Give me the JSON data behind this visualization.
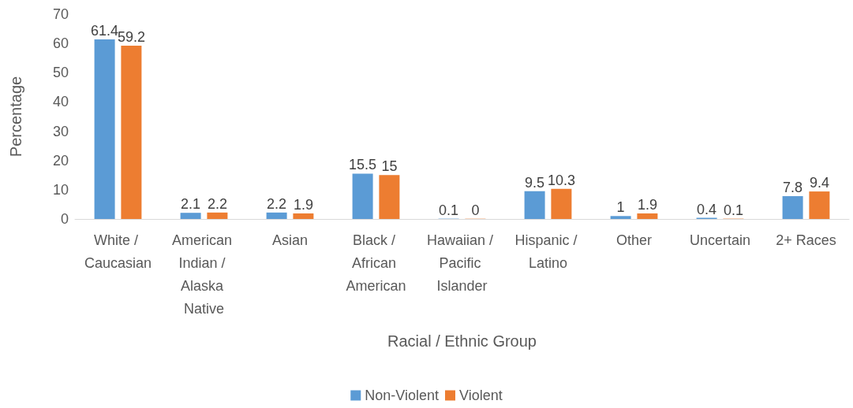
{
  "chart_data": {
    "type": "bar",
    "xlabel": "Racial / Ethnic Group",
    "ylabel": "Percentage",
    "categories": [
      "White / Caucasian",
      "American Indian / Alaska Native",
      "Asian",
      "Black / African American",
      "Hawaiian / Pacific Islander",
      "Hispanic / Latino",
      "Other",
      "Uncertain",
      "2+ Races"
    ],
    "series": [
      {
        "name": "Non-Violent",
        "color": "#5b9bd5",
        "values": [
          61.4,
          2.1,
          2.2,
          15.5,
          0.1,
          9.5,
          1,
          0.4,
          7.8
        ]
      },
      {
        "name": "Violent",
        "color": "#ed7d31",
        "values": [
          59.2,
          2.2,
          1.9,
          15,
          0,
          10.3,
          1.9,
          0.1,
          9.4
        ]
      }
    ],
    "ylim": [
      0,
      70
    ],
    "yticks": [
      0,
      10,
      20,
      30,
      40,
      50,
      60,
      70
    ],
    "data_labels": true,
    "grid": false,
    "legend": "bottom"
  }
}
